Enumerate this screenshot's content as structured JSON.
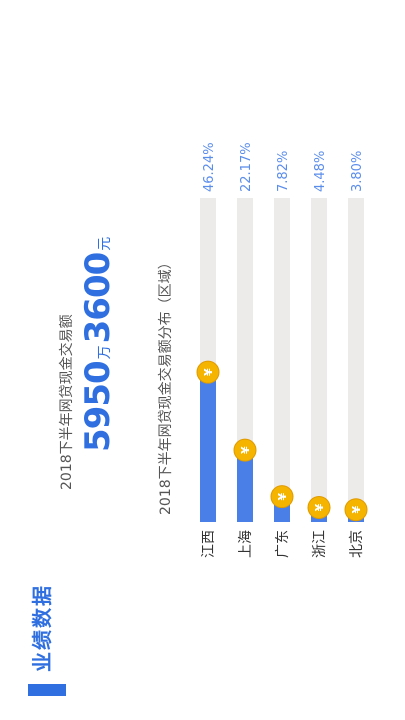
{
  "section": {
    "title": "业绩数据"
  },
  "summary": {
    "label": "2018下半年网贷现金交易额",
    "value1": "5950",
    "unit1": "万",
    "value2": "3600",
    "unit2": "元"
  },
  "colors": {
    "accent": "#2F6FE0",
    "bar": "#4A7FE8",
    "track": "#EDEAEA",
    "coin": "#F5B400"
  },
  "chart_data": {
    "type": "bar",
    "title": "2018下半年网贷现金交易额分布（区域）",
    "categories": [
      "江西",
      "上海",
      "广东",
      "浙江",
      "北京"
    ],
    "values": [
      46.24,
      22.17,
      7.82,
      4.48,
      3.8
    ],
    "value_labels": [
      "46.24%",
      "22.17%",
      "7.82%",
      "4.48%",
      "3.80%"
    ],
    "ylim": [
      0,
      100
    ],
    "xlabel": "",
    "ylabel": "",
    "orientation": "horizontal",
    "coin_glyph": "¥"
  }
}
